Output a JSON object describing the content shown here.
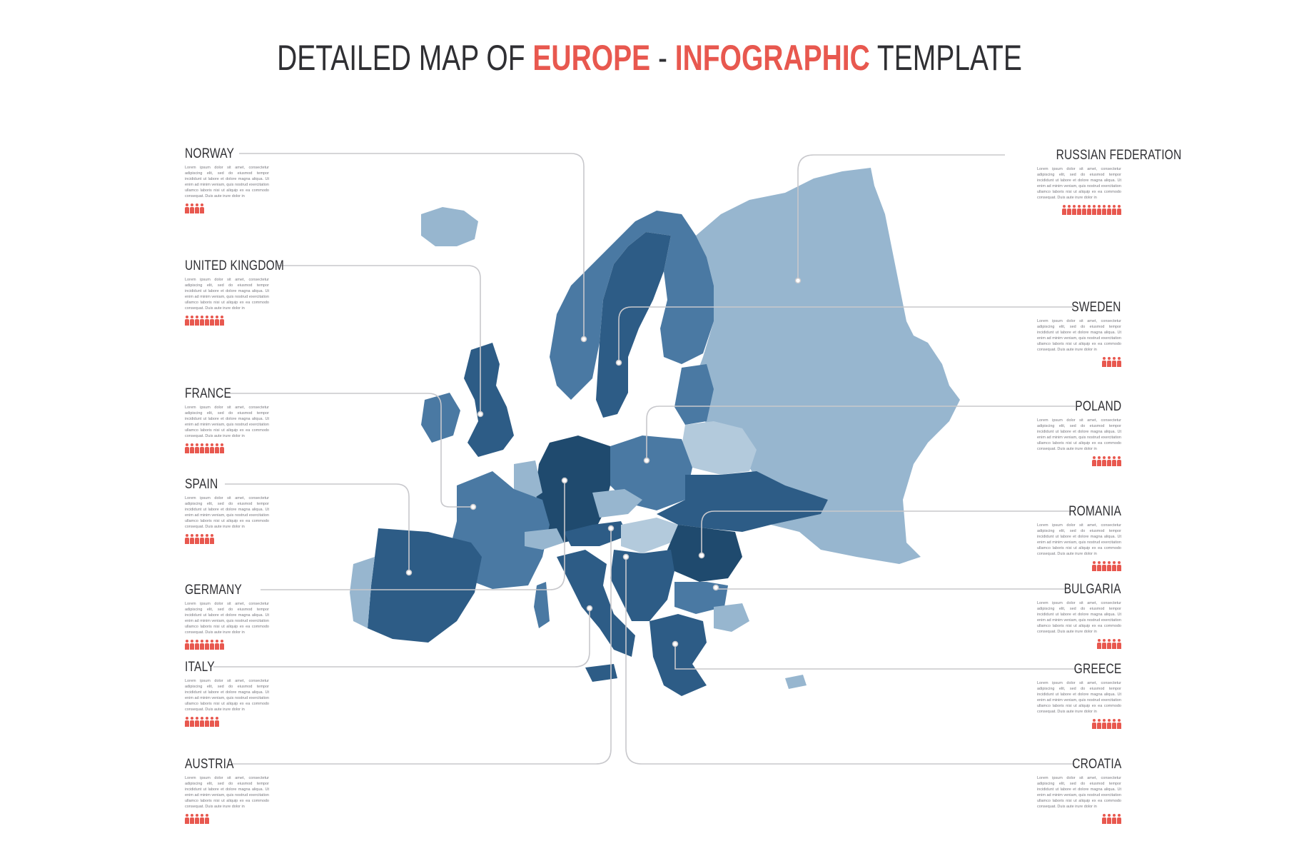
{
  "title": {
    "part1": "DETAILED MAP OF ",
    "accent1": "EUROPE",
    "part2": " - ",
    "accent2": "INFOGRAPHIC",
    "part3": " TEMPLATE"
  },
  "colors": {
    "accent": "#e8584f",
    "dark": "#2f2f33",
    "map_darkest": "#1f4a6e",
    "map_dark": "#2d5c86",
    "map_mid": "#4a79a3",
    "map_light": "#97b6cf",
    "map_lightest": "#b3cadc",
    "line": "#c8c8cc"
  },
  "lorem": "Lorem ipsum dolor sit amet, consectetur adipiscing elit, sed do eiusmod tempor incididunt ut labore et dolore magna aliqua. Ut enim ad minim veniam, quis nostrud exercitation ullamco laboris nisi ut aliquip ex ea commodo consequat. Duis aute irure dolor in",
  "countries_left": [
    {
      "name": "NORWAY",
      "people": 4
    },
    {
      "name": "UNITED KINGDOM",
      "people": 8
    },
    {
      "name": "FRANCE",
      "people": 8
    },
    {
      "name": "SPAIN",
      "people": 6
    },
    {
      "name": "GERMANY",
      "people": 8
    },
    {
      "name": "ITALY",
      "people": 7
    },
    {
      "name": "AUSTRIA",
      "people": 5
    }
  ],
  "countries_right": [
    {
      "name": "RUSSIAN FEDERATION",
      "people": 12
    },
    {
      "name": "SWEDEN",
      "people": 4
    },
    {
      "name": "POLAND",
      "people": 6
    },
    {
      "name": "ROMANIA",
      "people": 6
    },
    {
      "name": "BULGARIA",
      "people": 5
    },
    {
      "name": "GREECE",
      "people": 6
    },
    {
      "name": "CROATIA",
      "people": 4
    }
  ]
}
